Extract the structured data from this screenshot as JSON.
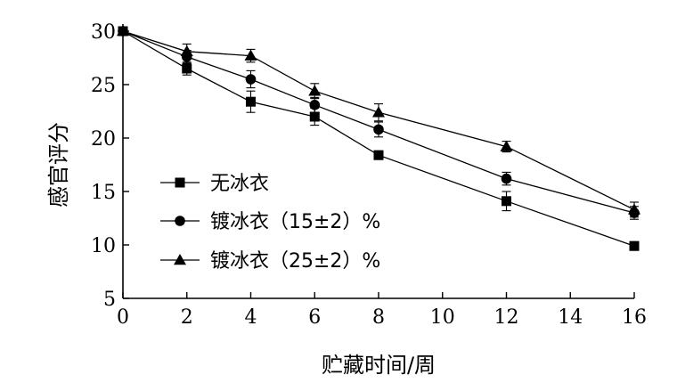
{
  "chart_data": {
    "type": "line",
    "title": "",
    "xlabel": "贮藏时间/周",
    "ylabel": "感官评分",
    "xlim": [
      0,
      16
    ],
    "ylim": [
      5,
      30
    ],
    "xticks": [
      0,
      2,
      4,
      6,
      8,
      10,
      12,
      14,
      16
    ],
    "yticks": [
      5,
      10,
      15,
      20,
      25,
      30
    ],
    "grid": false,
    "legend_position": "bottom-left",
    "x": [
      0,
      2,
      4,
      6,
      8,
      12,
      16
    ],
    "series": [
      {
        "name": "无冰衣",
        "marker": "square",
        "values": [
          30.0,
          26.5,
          23.4,
          22.0,
          18.4,
          14.1,
          9.9
        ],
        "errors": [
          0.3,
          0.6,
          1.0,
          0.8,
          0.4,
          0.9,
          0.4
        ]
      },
      {
        "name": "镀冰衣（15±2）%",
        "marker": "circle",
        "values": [
          30.0,
          27.6,
          25.5,
          23.1,
          20.8,
          16.2,
          13.0
        ],
        "errors": [
          0.3,
          0.6,
          0.8,
          0.7,
          0.7,
          0.6,
          0.6
        ]
      },
      {
        "name": "镀冰衣（25±2）%",
        "marker": "triangle",
        "values": [
          30.0,
          28.1,
          27.7,
          24.4,
          22.4,
          19.2,
          13.3
        ],
        "errors": [
          0.3,
          0.7,
          0.6,
          0.7,
          0.8,
          0.5,
          0.7
        ]
      }
    ]
  }
}
